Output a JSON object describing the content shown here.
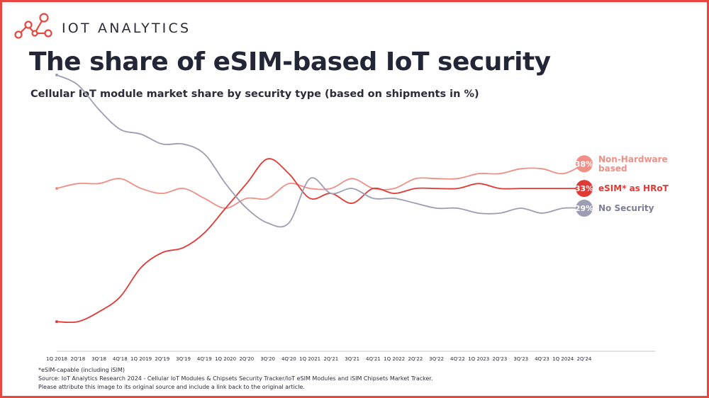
{
  "brand": {
    "name": "IOT ANALYTICS",
    "accent_color": "#e8473f"
  },
  "title": "The share of eSIM-based IoT security",
  "subtitle": "Cellular IoT module market share by security type (based on shipments in %)",
  "footnotes": {
    "esim_note": "*eSIM-capable (including iSIM)",
    "source": "Source: IoT Analytics Research 2024 - Cellular IoT Modules & Chipsets Security Tracker/IoT eSIM Modules and iSIM Chipsets Market Tracker.",
    "attribution": "Please attribute this image to its original source and include a link back to the original article."
  },
  "chart_data": {
    "type": "line",
    "categories": [
      "1Q 2018",
      "2Q'18",
      "3Q'18",
      "4Q'18",
      "1Q 2019",
      "2Q'19",
      "3Q'19",
      "4Q'19",
      "1Q 2020",
      "2Q'20",
      "3Q'20",
      "4Q'20",
      "1Q 2021",
      "2Q'21",
      "3Q'21",
      "4Q'21",
      "1Q 2022",
      "2Q'22",
      "3Q'22",
      "4Q'22",
      "1Q 2023",
      "2Q'23",
      "3Q'23",
      "4Q'23",
      "1Q 2024",
      "2Q'24"
    ],
    "ylim": [
      0,
      58
    ],
    "grid": false,
    "legend": "end-of-line labels",
    "series": [
      {
        "name": "Non-Hardware based",
        "color": "#ef8f86",
        "end_label": "38%",
        "values": [
          33,
          34,
          34,
          35,
          33,
          32,
          33,
          31,
          29,
          31,
          31,
          34,
          33,
          33,
          35,
          33,
          33,
          35,
          35,
          35,
          36,
          36,
          37,
          37,
          36,
          38
        ]
      },
      {
        "name": "eSIM* as HRoT",
        "color": "#e03a36",
        "end_label": "33%",
        "values": [
          6,
          6,
          8,
          11,
          17,
          20,
          21,
          24,
          29,
          34,
          39,
          36,
          31,
          32,
          30,
          33,
          32,
          33,
          33,
          33,
          34,
          33,
          33,
          33,
          33,
          33
        ]
      },
      {
        "name": "No Security",
        "color": "#9c9db2",
        "end_label": "29%",
        "values": [
          56,
          54,
          49,
          45,
          44,
          42,
          42,
          40,
          34,
          29,
          26,
          26,
          35,
          32,
          33,
          31,
          31,
          30,
          29,
          29,
          28,
          28,
          29,
          28,
          29,
          29
        ]
      }
    ]
  }
}
